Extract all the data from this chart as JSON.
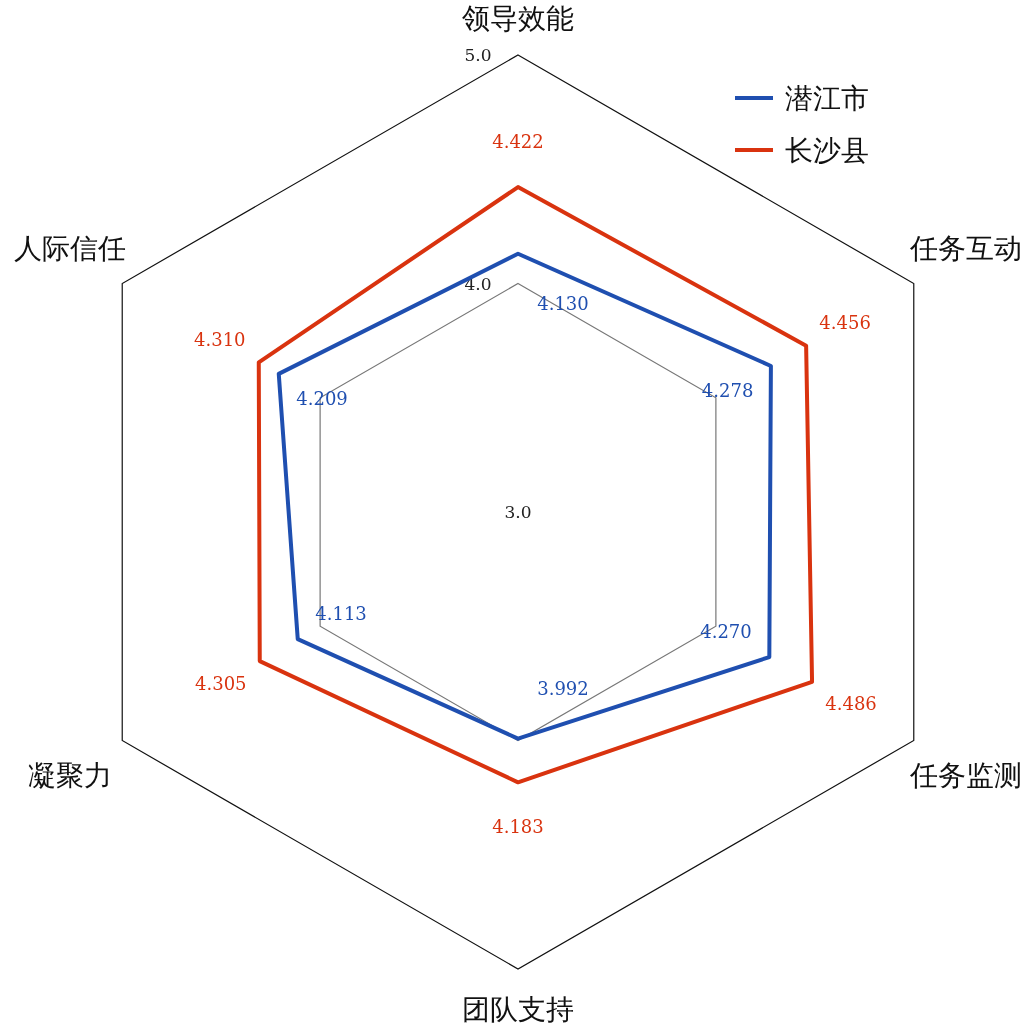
{
  "chart_data": {
    "type": "radar",
    "categories": [
      "领导效能",
      "任务互动",
      "任务监测",
      "团队支持",
      "凝聚力",
      "人际信任"
    ],
    "series": [
      {
        "name": "潜江市",
        "color": "#1f4fb0",
        "values": [
          4.13,
          4.278,
          4.27,
          3.992,
          4.113,
          4.209
        ],
        "value_labels": [
          "4.130",
          "4.278",
          "4.270",
          "3.992",
          "4.113",
          "4.209"
        ]
      },
      {
        "name": "长沙县",
        "color": "#d9330f",
        "values": [
          4.422,
          4.456,
          4.486,
          4.183,
          4.305,
          4.31
        ],
        "value_labels": [
          "4.422",
          "4.456",
          "4.486",
          "4.183",
          "4.305",
          "4.310"
        ]
      }
    ],
    "ylim": [
      3,
      5
    ],
    "yticks": [
      {
        "value": 3,
        "label": "3.0"
      },
      {
        "value": 4,
        "label": "4.0"
      },
      {
        "value": 5,
        "label": "5.0"
      }
    ],
    "grid": true,
    "legend": "top right"
  }
}
